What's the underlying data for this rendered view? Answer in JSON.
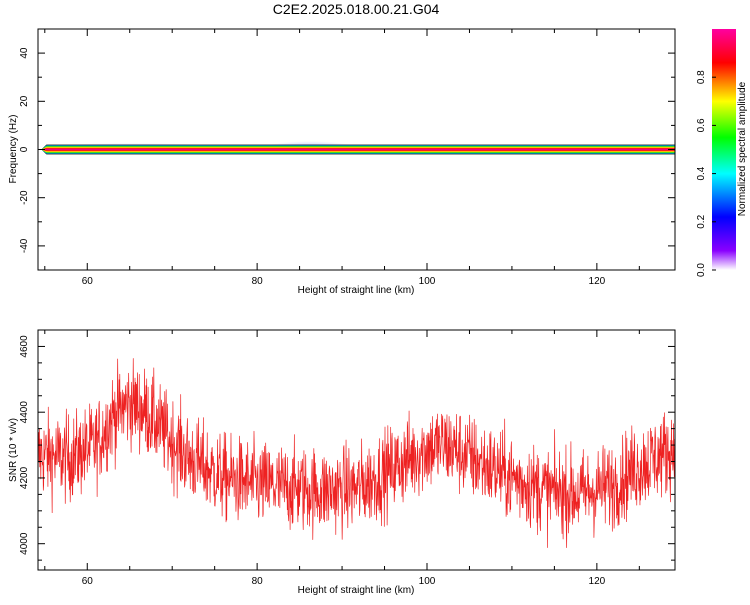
{
  "title": "C2E2.2025.018.00.21.G04",
  "colors": {
    "snr_line": "#ee2222",
    "background": "#ffffff",
    "axis": "#000000"
  },
  "chart_data": [
    {
      "type": "heatmap",
      "xlabel": "Height of straight line (km)",
      "ylabel": "Frequency (Hz)",
      "xlim": [
        54.2,
        129.2
      ],
      "ylim": [
        -50,
        50
      ],
      "x_ticks": [
        60,
        80,
        100,
        120
      ],
      "y_ticks": [
        -40,
        -20,
        0,
        20,
        40
      ],
      "grid": false,
      "description_values": {
        "band_center_hz": 0,
        "band_half_width_hz": 1.5,
        "band_start_km": 54.6,
        "band_end_km": 129.2,
        "peak_normalized_amplitude": 1.0
      },
      "colorbar": {
        "label": "Normalized spectral amplitude",
        "range": [
          0,
          1
        ],
        "ticks": [
          0.0,
          0.2,
          0.4,
          0.6,
          0.8
        ],
        "colormap": [
          "#ffffff",
          "#8a00ff",
          "#0000ff",
          "#00ffff",
          "#00ff00",
          "#ffff00",
          "#ff0000",
          "#ff00a0"
        ]
      }
    },
    {
      "type": "line",
      "xlabel": "Height of straight line (km)",
      "ylabel": "SNR (10 * v/v)",
      "xlim": [
        54.2,
        129.2
      ],
      "ylim": [
        3920,
        4650
      ],
      "x_ticks": [
        60,
        80,
        100,
        120
      ],
      "y_ticks": [
        4000,
        4200,
        4400,
        4600
      ],
      "grid": false,
      "series": [
        {
          "color": "#ee2222",
          "noise_amplitude": 110,
          "trend": {
            "x": [
              54.2,
              58,
              61,
              63,
              65,
              67,
              69,
              72,
              76,
              80,
              84,
              88,
              92,
              96,
              100,
              102,
              104,
              106,
              110,
              114,
              118,
              122,
              124,
              126,
              129.2
            ],
            "y": [
              4270,
              4260,
              4300,
              4390,
              4430,
              4400,
              4340,
              4260,
              4200,
              4180,
              4170,
              4160,
              4170,
              4230,
              4290,
              4300,
              4280,
              4250,
              4200,
              4160,
              4150,
              4180,
              4220,
              4250,
              4290
            ]
          }
        }
      ]
    }
  ]
}
